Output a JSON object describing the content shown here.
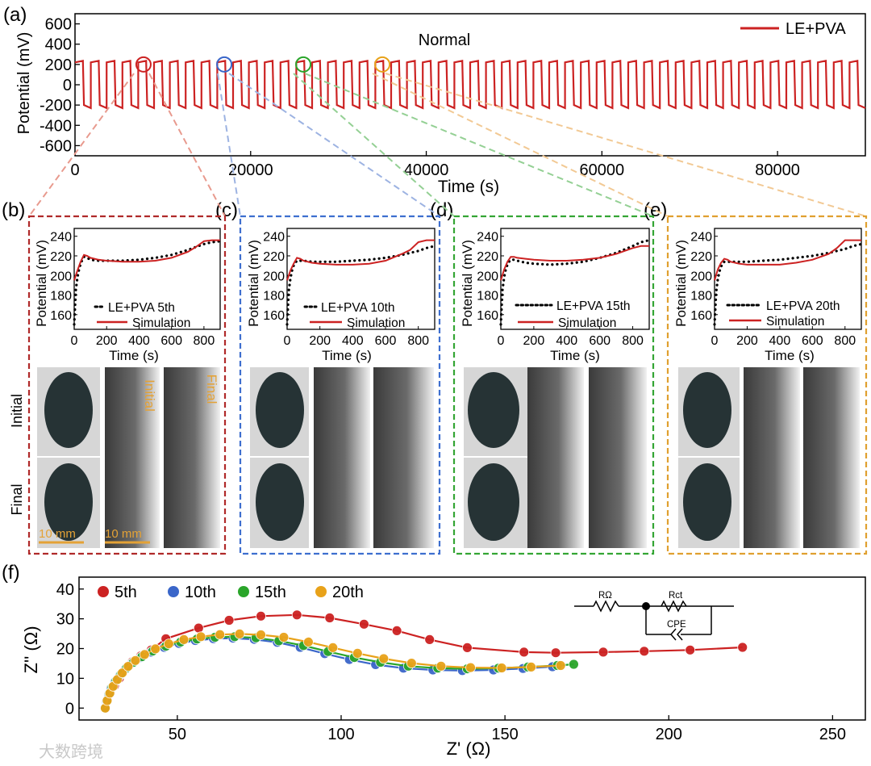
{
  "panel_labels": {
    "a": "(a)",
    "b": "(b)",
    "c": "(c)",
    "d": "(d)",
    "e": "(e)",
    "f": "(f)"
  },
  "colors": {
    "red": "#cc2222",
    "blue": "#3a66c9",
    "green": "#2aa52a",
    "orange": "#e8a21a",
    "frame_red": "#b02a2a",
    "frame_blue": "#3e6fcf",
    "frame_green": "#34a534",
    "frame_orange": "#e0a030"
  },
  "chart_data": [
    {
      "id": "a",
      "type": "line",
      "title": "Normal",
      "xlabel": "Time (s)",
      "ylabel": "Potential (mV)",
      "xlim": [
        0,
        90000
      ],
      "ylim": [
        -700,
        700
      ],
      "xticks": [
        0,
        20000,
        40000,
        60000,
        80000
      ],
      "yticks": [
        600,
        400,
        200,
        0,
        -200,
        -400,
        -600
      ],
      "series": [
        {
          "name": "LE+PVA",
          "period_s": 1800,
          "high_mV": 230,
          "low_mV": -230
        }
      ],
      "legend": "top-right",
      "markers": [
        {
          "x": 7800,
          "color": "red"
        },
        {
          "x": 17000,
          "color": "blue"
        },
        {
          "x": 26000,
          "color": "green"
        },
        {
          "x": 35000,
          "color": "orange"
        }
      ]
    },
    {
      "id": "b",
      "type": "line",
      "xlabel": "Time (s)",
      "ylabel": "Potential (mV)",
      "xlim": [
        0,
        900
      ],
      "ylim": [
        145,
        248
      ],
      "xticks": [
        0,
        200,
        400,
        600,
        800
      ],
      "yticks": [
        160,
        180,
        200,
        220,
        240
      ],
      "series": [
        {
          "name": "LE+PVA 5th",
          "style": "dotted",
          "x": [
            0,
            10,
            20,
            30,
            40,
            50,
            60,
            80,
            100,
            150,
            200,
            300,
            400,
            500,
            600,
            700,
            800,
            850,
            900
          ],
          "y": [
            150,
            185,
            198,
            206,
            212,
            216,
            219,
            218,
            216,
            215,
            215,
            215,
            216,
            218,
            221,
            226,
            232,
            234,
            235
          ]
        },
        {
          "name": "Simulation",
          "style": "solid",
          "x": [
            0,
            20,
            40,
            60,
            80,
            100,
            150,
            200,
            300,
            400,
            500,
            600,
            700,
            750,
            800,
            850,
            900
          ],
          "y": [
            195,
            205,
            214,
            221,
            220,
            218,
            216,
            215,
            214,
            214,
            215,
            218,
            224,
            229,
            235,
            236,
            236
          ]
        }
      ]
    },
    {
      "id": "c",
      "type": "line",
      "xlabel": "Time (s)",
      "ylabel": "Potential (mV)",
      "xlim": [
        0,
        900
      ],
      "ylim": [
        145,
        248
      ],
      "xticks": [
        0,
        200,
        400,
        600,
        800
      ],
      "yticks": [
        160,
        180,
        200,
        220,
        240
      ],
      "series": [
        {
          "name": "LE+PVA 10th",
          "style": "dotted",
          "x": [
            0,
            10,
            20,
            30,
            40,
            50,
            60,
            80,
            100,
            150,
            200,
            300,
            400,
            500,
            600,
            700,
            800,
            850,
            900
          ],
          "y": [
            150,
            184,
            197,
            205,
            210,
            213,
            215,
            215,
            215,
            214,
            214,
            214,
            215,
            216,
            218,
            221,
            225,
            228,
            230
          ]
        },
        {
          "name": "Simulation",
          "style": "solid",
          "x": [
            0,
            20,
            40,
            60,
            80,
            100,
            150,
            200,
            300,
            400,
            500,
            600,
            700,
            750,
            800,
            850,
            900
          ],
          "y": [
            195,
            205,
            212,
            218,
            217,
            215,
            213,
            212,
            211,
            211,
            212,
            215,
            222,
            226,
            234,
            236,
            236
          ]
        }
      ]
    },
    {
      "id": "d",
      "type": "line",
      "xlabel": "Time (s)",
      "ylabel": "Potential (mV)",
      "xlim": [
        0,
        900
      ],
      "ylim": [
        145,
        248
      ],
      "xticks": [
        0,
        200,
        400,
        600,
        800
      ],
      "yticks": [
        160,
        180,
        200,
        220,
        240
      ],
      "series": [
        {
          "name": "LE+PVA 15th",
          "style": "dotted",
          "x": [
            0,
            10,
            20,
            30,
            40,
            50,
            60,
            80,
            100,
            150,
            200,
            300,
            400,
            500,
            600,
            700,
            800,
            850,
            900
          ],
          "y": [
            150,
            185,
            198,
            206,
            211,
            214,
            216,
            216,
            215,
            213,
            212,
            211,
            212,
            214,
            218,
            223,
            230,
            234,
            236
          ]
        },
        {
          "name": "Simulation",
          "style": "solid",
          "x": [
            0,
            20,
            40,
            60,
            80,
            100,
            150,
            200,
            300,
            400,
            500,
            600,
            700,
            750,
            800,
            850,
            900
          ],
          "y": [
            195,
            206,
            214,
            219,
            219,
            218,
            217,
            216,
            215,
            215,
            216,
            218,
            222,
            225,
            228,
            230,
            230
          ]
        }
      ]
    },
    {
      "id": "e",
      "type": "line",
      "xlabel": "Time (s)",
      "ylabel": "Potential (mV)",
      "xlim": [
        0,
        900
      ],
      "ylim": [
        145,
        248
      ],
      "xticks": [
        0,
        200,
        400,
        600,
        800
      ],
      "yticks": [
        160,
        180,
        200,
        220,
        240
      ],
      "series": [
        {
          "name": "LE+PVA 20th",
          "style": "dotted",
          "x": [
            0,
            10,
            20,
            30,
            40,
            50,
            60,
            80,
            100,
            150,
            200,
            300,
            400,
            500,
            600,
            700,
            800,
            850,
            900
          ],
          "y": [
            150,
            183,
            196,
            204,
            209,
            212,
            214,
            214,
            214,
            214,
            214,
            215,
            216,
            218,
            220,
            223,
            227,
            230,
            232
          ]
        },
        {
          "name": "Simulation",
          "style": "solid",
          "x": [
            0,
            20,
            40,
            60,
            80,
            100,
            150,
            200,
            300,
            400,
            500,
            600,
            700,
            750,
            800,
            850,
            900
          ],
          "y": [
            195,
            206,
            213,
            217,
            216,
            214,
            212,
            211,
            211,
            211,
            213,
            216,
            222,
            228,
            236,
            236,
            236
          ]
        }
      ]
    },
    {
      "id": "f",
      "type": "scatter",
      "xlabel": "Z' (Ω)",
      "ylabel": "Z'' (Ω)",
      "xlim": [
        20,
        260
      ],
      "ylim": [
        -4,
        44
      ],
      "xticks": [
        50,
        100,
        150,
        200,
        250
      ],
      "yticks": [
        0,
        10,
        20,
        30,
        40
      ],
      "legend": "top-left",
      "series": [
        {
          "name": "5th",
          "color": "red",
          "x": [
            28,
            28.6,
            29.5,
            30.8,
            32.3,
            34,
            36.2,
            38.8,
            42,
            46.5,
            56.5,
            65.8,
            75.5,
            86.5,
            96.5,
            107,
            117,
            127,
            138.5,
            155.8,
            165.5,
            180,
            192.5,
            206.5,
            222.5
          ],
          "y": [
            0,
            2.5,
            5,
            7.5,
            10,
            12.8,
            15.5,
            17.5,
            19.5,
            23.3,
            26.9,
            29.5,
            30.9,
            31.3,
            30.3,
            28.2,
            26,
            23,
            20.3,
            18.8,
            18.6,
            18.8,
            19.1,
            19.5,
            20.4
          ]
        },
        {
          "name": "10th",
          "color": "blue",
          "x": [
            27.8,
            28.3,
            29,
            29.8,
            31,
            32.5,
            34.2,
            36.2,
            38.8,
            42,
            46,
            50.5,
            55.5,
            61,
            67,
            73.5,
            80.5,
            87.5,
            95,
            102.5,
            110.5,
            119,
            128,
            137,
            146.5,
            155.5,
            164.5
          ],
          "y": [
            0,
            2.3,
            4.6,
            6.8,
            9,
            11.1,
            13.2,
            15.1,
            17,
            18.8,
            20.4,
            21.7,
            22.7,
            23.3,
            23.5,
            23.1,
            22.1,
            20.4,
            18.3,
            16.3,
            14.6,
            13.4,
            12.8,
            12.6,
            12.8,
            13.3,
            13.9
          ]
        },
        {
          "name": "15th",
          "color": "green",
          "x": [
            27.9,
            28.5,
            29.2,
            30.1,
            31.3,
            32.8,
            34.5,
            36.6,
            39.2,
            42.5,
            46.5,
            51,
            56,
            61.5,
            67.5,
            74,
            81,
            88.5,
            96,
            104,
            112,
            120.5,
            129.5,
            138.5,
            148,
            157,
            166,
            171
          ],
          "y": [
            0,
            2.4,
            4.8,
            7,
            9.2,
            11.4,
            13.5,
            15.4,
            17.3,
            19.2,
            20.8,
            22.2,
            23.2,
            23.8,
            24,
            23.6,
            22.6,
            21,
            19,
            17,
            15.4,
            14.1,
            13.4,
            13.2,
            13.4,
            13.8,
            14.3,
            14.7
          ]
        },
        {
          "name": "20th",
          "color": "orange",
          "x": [
            28,
            28.6,
            29.4,
            30.4,
            31.7,
            33.2,
            35,
            37.2,
            40,
            43.3,
            47.4,
            52,
            57.2,
            63,
            69,
            75.5,
            82.5,
            90,
            97.5,
            105,
            113,
            121.5,
            130.5,
            139.5,
            149,
            158,
            167
          ],
          "y": [
            0,
            2.5,
            5,
            7.3,
            9.6,
            11.8,
            14,
            16,
            18,
            19.9,
            21.6,
            23,
            24,
            24.7,
            24.9,
            24.6,
            23.8,
            22.2,
            20.3,
            18.4,
            16.6,
            15.1,
            14.1,
            13.6,
            13.5,
            13.8,
            14.3
          ]
        }
      ]
    }
  ],
  "photos": {
    "row_labels": {
      "initial": "Initial",
      "final": "Final"
    },
    "col_labels": {
      "initial": "Initial",
      "final": "Final"
    },
    "scale_bars": [
      "10 mm",
      "10 mm"
    ]
  },
  "circuit": {
    "r_ohm": "RΩ",
    "r_ct": "Rct",
    "cpe": "CPE"
  },
  "watermark": "大数跨境"
}
